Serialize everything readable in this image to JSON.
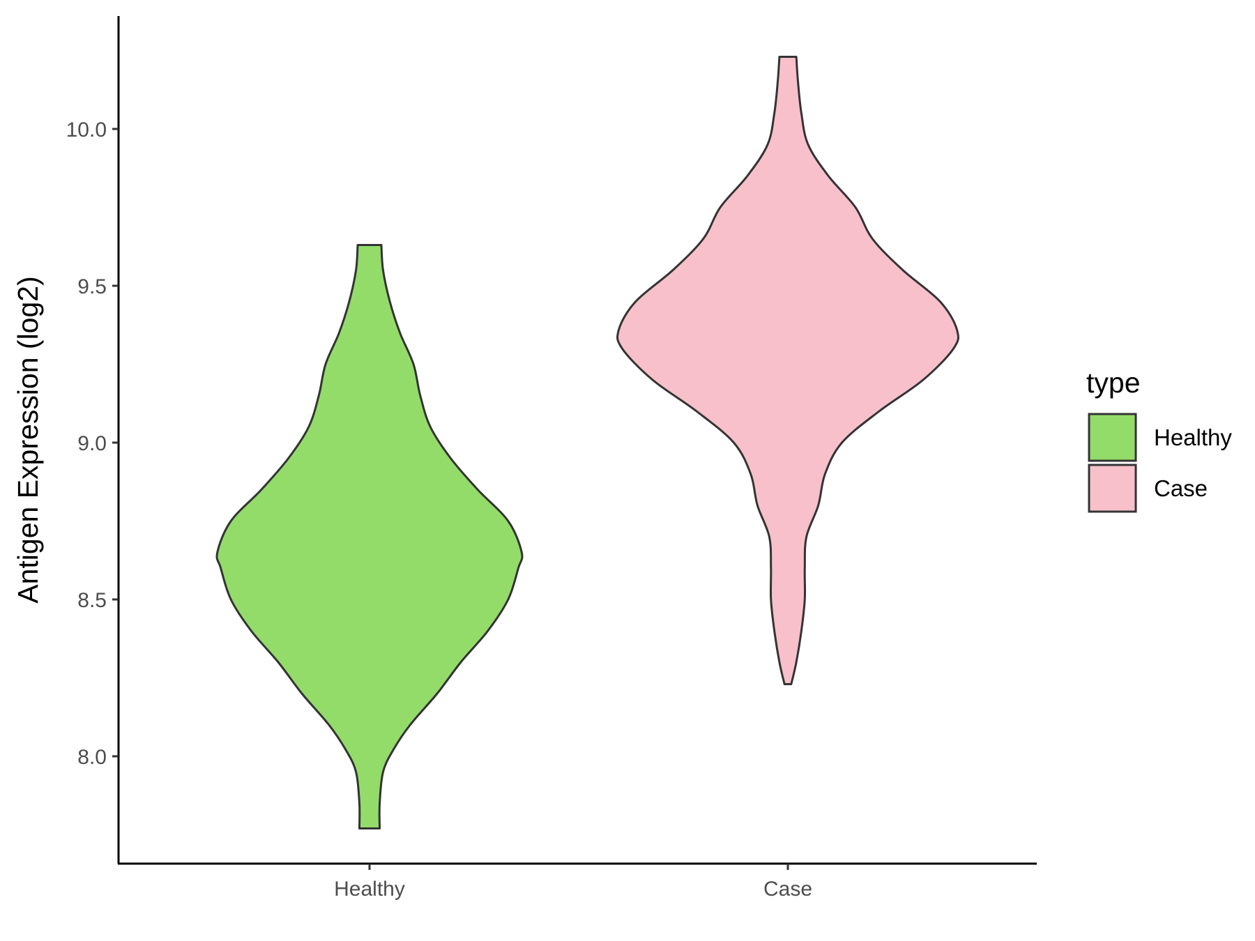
{
  "chart_data": {
    "type": "violin",
    "ylabel": "Antigen Expression (log2)",
    "ylim": [
      7.66,
      10.37
    ],
    "yticks": [
      "8.0",
      "8.5",
      "9.0",
      "9.5",
      "10.0"
    ],
    "ytick_values": [
      8.0,
      8.5,
      9.0,
      9.5,
      10.0
    ],
    "categories": [
      "Healthy",
      "Case"
    ],
    "legend": {
      "title": "type",
      "position": "right",
      "entries": [
        {
          "label": "Healthy",
          "color": "#93dc6a"
        },
        {
          "label": "Case",
          "color": "#f7c0cb"
        }
      ]
    },
    "grid": false,
    "series": [
      {
        "name": "Healthy",
        "color": "#93dc6a",
        "y_min": 7.77,
        "y_max": 9.63,
        "profile": [
          [
            7.77,
            0.03
          ],
          [
            7.85,
            0.03
          ],
          [
            7.95,
            0.04
          ],
          [
            8.02,
            0.07
          ],
          [
            8.1,
            0.12
          ],
          [
            8.2,
            0.2
          ],
          [
            8.3,
            0.27
          ],
          [
            8.4,
            0.35
          ],
          [
            8.5,
            0.41
          ],
          [
            8.6,
            0.44
          ],
          [
            8.65,
            0.45
          ],
          [
            8.75,
            0.41
          ],
          [
            8.85,
            0.32
          ],
          [
            8.95,
            0.24
          ],
          [
            9.05,
            0.18
          ],
          [
            9.15,
            0.15
          ],
          [
            9.25,
            0.13
          ],
          [
            9.35,
            0.09
          ],
          [
            9.45,
            0.06
          ],
          [
            9.55,
            0.04
          ],
          [
            9.63,
            0.035
          ]
        ]
      },
      {
        "name": "Case",
        "color": "#f7c0cb",
        "y_min": 8.23,
        "y_max": 10.23,
        "profile": [
          [
            8.23,
            0.01
          ],
          [
            8.3,
            0.025
          ],
          [
            8.4,
            0.04
          ],
          [
            8.5,
            0.05
          ],
          [
            8.6,
            0.05
          ],
          [
            8.7,
            0.055
          ],
          [
            8.8,
            0.09
          ],
          [
            8.9,
            0.11
          ],
          [
            9.0,
            0.16
          ],
          [
            9.1,
            0.27
          ],
          [
            9.2,
            0.4
          ],
          [
            9.3,
            0.49
          ],
          [
            9.36,
            0.5
          ],
          [
            9.45,
            0.45
          ],
          [
            9.55,
            0.34
          ],
          [
            9.65,
            0.25
          ],
          [
            9.75,
            0.2
          ],
          [
            9.85,
            0.12
          ],
          [
            9.95,
            0.06
          ],
          [
            10.05,
            0.04
          ],
          [
            10.15,
            0.03
          ],
          [
            10.23,
            0.025
          ]
        ]
      }
    ]
  }
}
